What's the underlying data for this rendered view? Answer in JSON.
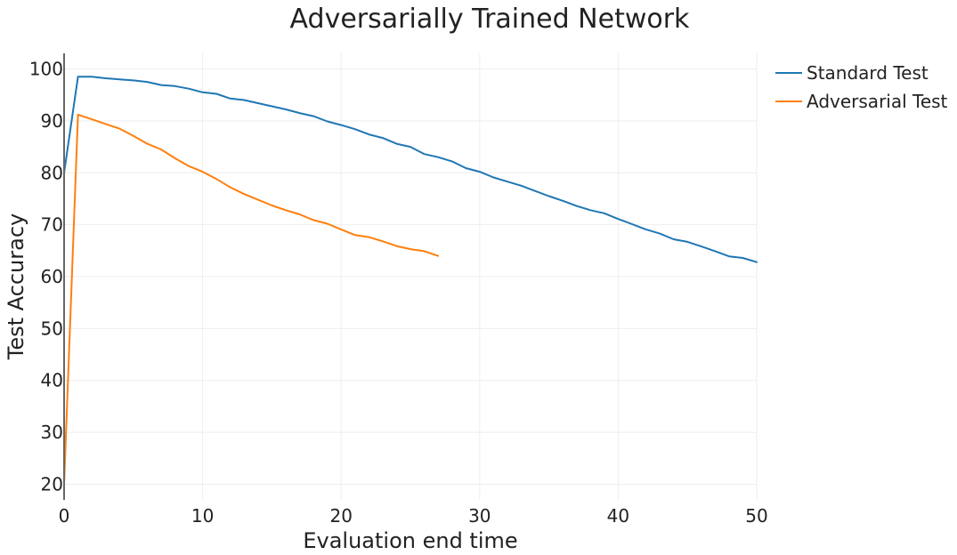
{
  "chart_data": {
    "type": "line",
    "title": "Adversarially Trained Network",
    "xlabel": "Evaluation end time",
    "ylabel": "Test Accuracy",
    "xlim": [
      0,
      50
    ],
    "ylim": [
      17,
      103
    ],
    "xticks": [
      0,
      10,
      20,
      30,
      40,
      50
    ],
    "yticks": [
      20,
      30,
      40,
      50,
      60,
      70,
      80,
      90,
      100
    ],
    "grid": true,
    "legend": "top-right",
    "series": [
      {
        "name": "Standard Test",
        "color": "#1f77b4",
        "x": [
          0,
          1,
          2,
          3,
          4,
          5,
          6,
          7,
          8,
          9,
          10,
          11,
          12,
          13,
          14,
          15,
          16,
          17,
          18,
          19,
          20,
          21,
          22,
          23,
          24,
          25,
          26,
          27,
          28,
          29,
          30,
          31,
          32,
          33,
          34,
          35,
          36,
          37,
          38,
          39,
          40,
          41,
          42,
          43,
          44,
          45,
          46,
          47,
          48,
          49,
          50
        ],
        "y": [
          80,
          98.5,
          98.5,
          98.2,
          98,
          97.8,
          97.5,
          96.9,
          96.7,
          96.2,
          95.5,
          95.2,
          94.3,
          94,
          93.4,
          92.8,
          92.2,
          91.5,
          90.9,
          89.9,
          89.2,
          88.4,
          87.4,
          86.7,
          85.6,
          85,
          83.6,
          83,
          82.2,
          80.9,
          80.2,
          79.1,
          78.3,
          77.5,
          76.5,
          75.5,
          74.6,
          73.6,
          72.8,
          72.2,
          71.1,
          70.1,
          69.1,
          68.3,
          67.2,
          66.7,
          65.8,
          64.9,
          63.9,
          63.6,
          62.8
        ]
      },
      {
        "name": "Adversarial Test",
        "color": "#ff7f0e",
        "x": [
          0,
          1,
          2,
          3,
          4,
          5,
          6,
          7,
          8,
          9,
          10,
          11,
          12,
          13,
          14,
          15,
          16,
          17,
          18,
          19,
          20,
          21,
          22,
          23,
          24,
          25,
          26,
          27
        ],
        "y": [
          20,
          91.2,
          90.3,
          89.4,
          88.5,
          87.1,
          85.6,
          84.5,
          82.8,
          81.3,
          80.2,
          78.8,
          77.2,
          75.9,
          74.8,
          73.7,
          72.8,
          72,
          70.9,
          70.2,
          69.1,
          68,
          67.6,
          66.8,
          65.9,
          65.3,
          64.9,
          64
        ]
      }
    ]
  }
}
